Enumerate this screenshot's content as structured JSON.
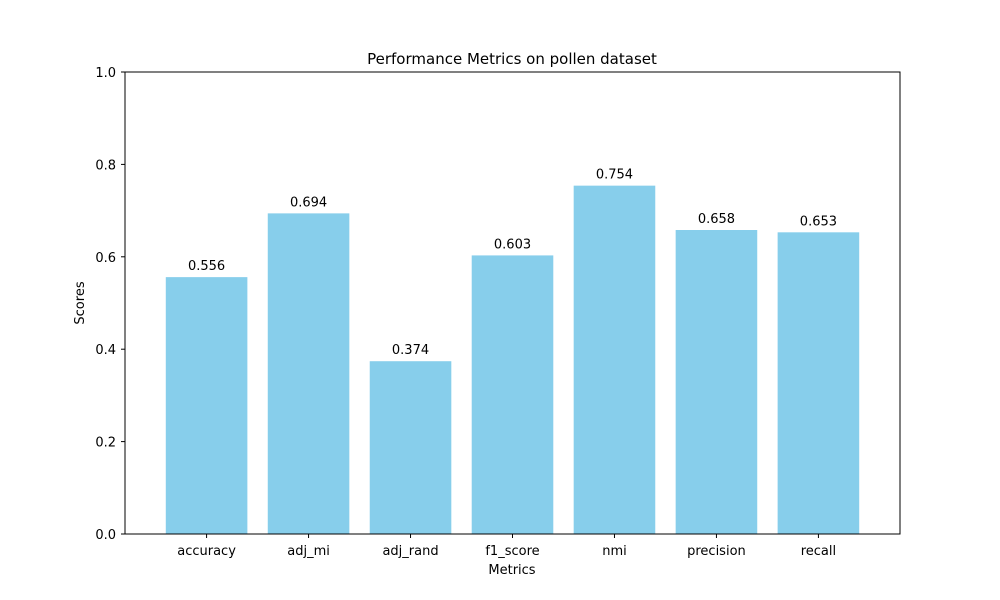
{
  "chart_data": {
    "type": "bar",
    "title": "Performance Metrics on pollen dataset",
    "xlabel": "Metrics",
    "ylabel": "Scores",
    "categories": [
      "accuracy",
      "adj_mi",
      "adj_rand",
      "f1_score",
      "nmi",
      "precision",
      "recall"
    ],
    "values": [
      0.556,
      0.694,
      0.374,
      0.603,
      0.754,
      0.658,
      0.653
    ],
    "value_labels": [
      "0.556",
      "0.694",
      "0.374",
      "0.603",
      "0.754",
      "0.658",
      "0.653"
    ],
    "ylim": [
      0,
      1.0
    ],
    "yticks": [
      0.0,
      0.2,
      0.4,
      0.6,
      0.8,
      1.0
    ],
    "ytick_labels": [
      "0.0",
      "0.2",
      "0.4",
      "0.6",
      "0.8",
      "1.0"
    ],
    "bar_color": "#87ceeb",
    "grid": false,
    "legend": "none"
  }
}
